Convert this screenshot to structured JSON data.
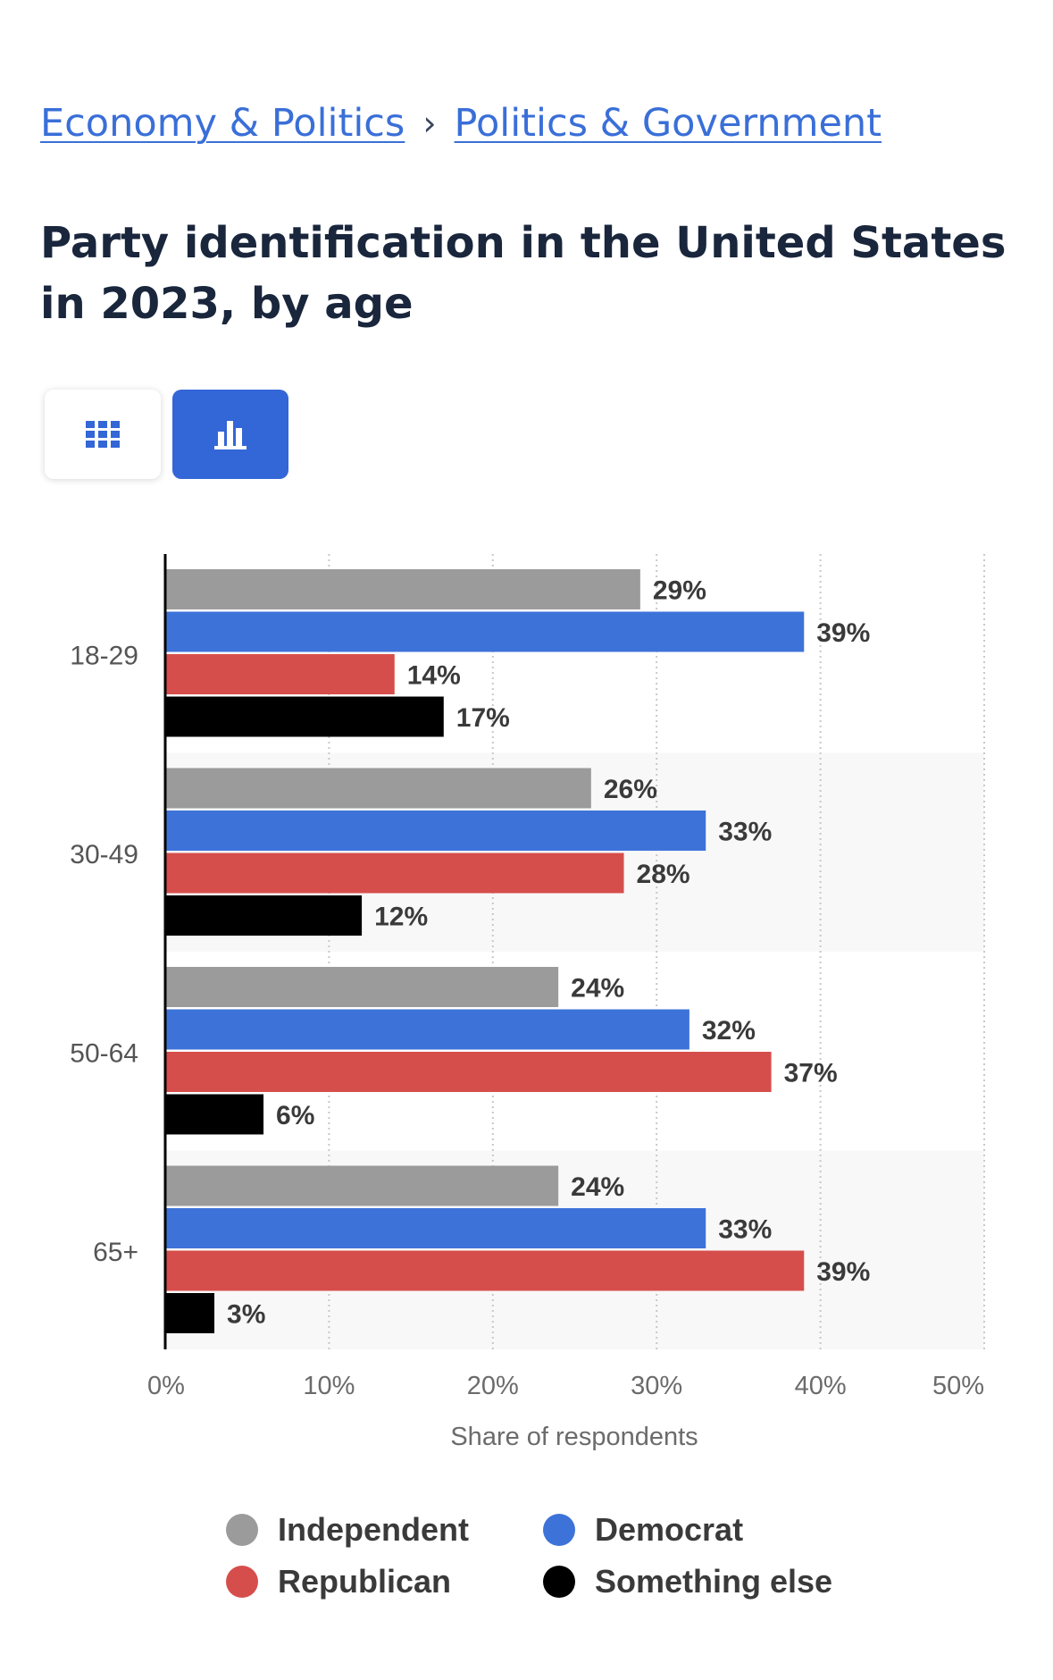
{
  "breadcrumb": {
    "items": [
      "Economy & Politics",
      "Politics & Government"
    ],
    "separator": "›"
  },
  "page_title": "Party identification in the United States in 2023, by age",
  "view_toggle": {
    "table_icon": "grid-icon",
    "chart_icon": "bar-chart-icon",
    "active": "chart"
  },
  "chart_data": {
    "type": "bar",
    "orientation": "horizontal",
    "title": "Party identification in the United States in 2023, by age",
    "categories": [
      "18-29",
      "30-49",
      "50-64",
      "65+"
    ],
    "series": [
      {
        "name": "Independent",
        "color": "#9b9b9b",
        "values": [
          29,
          26,
          24,
          24
        ]
      },
      {
        "name": "Democrat",
        "color": "#3d72d9",
        "values": [
          39,
          33,
          32,
          33
        ]
      },
      {
        "name": "Republican",
        "color": "#d64e4b",
        "values": [
          14,
          28,
          37,
          39
        ]
      },
      {
        "name": "Something else",
        "color": "#000000",
        "values": [
          17,
          12,
          6,
          3
        ]
      }
    ],
    "value_suffix": "%",
    "xlim": [
      0,
      50
    ],
    "xticks": [
      0,
      10,
      20,
      30,
      40,
      50
    ],
    "xtick_labels": [
      "0%",
      "10%",
      "20%",
      "30%",
      "40%",
      "50%"
    ],
    "xlabel": "Share of respondents",
    "ylabel": "",
    "grid": true,
    "legend_position": "bottom"
  }
}
